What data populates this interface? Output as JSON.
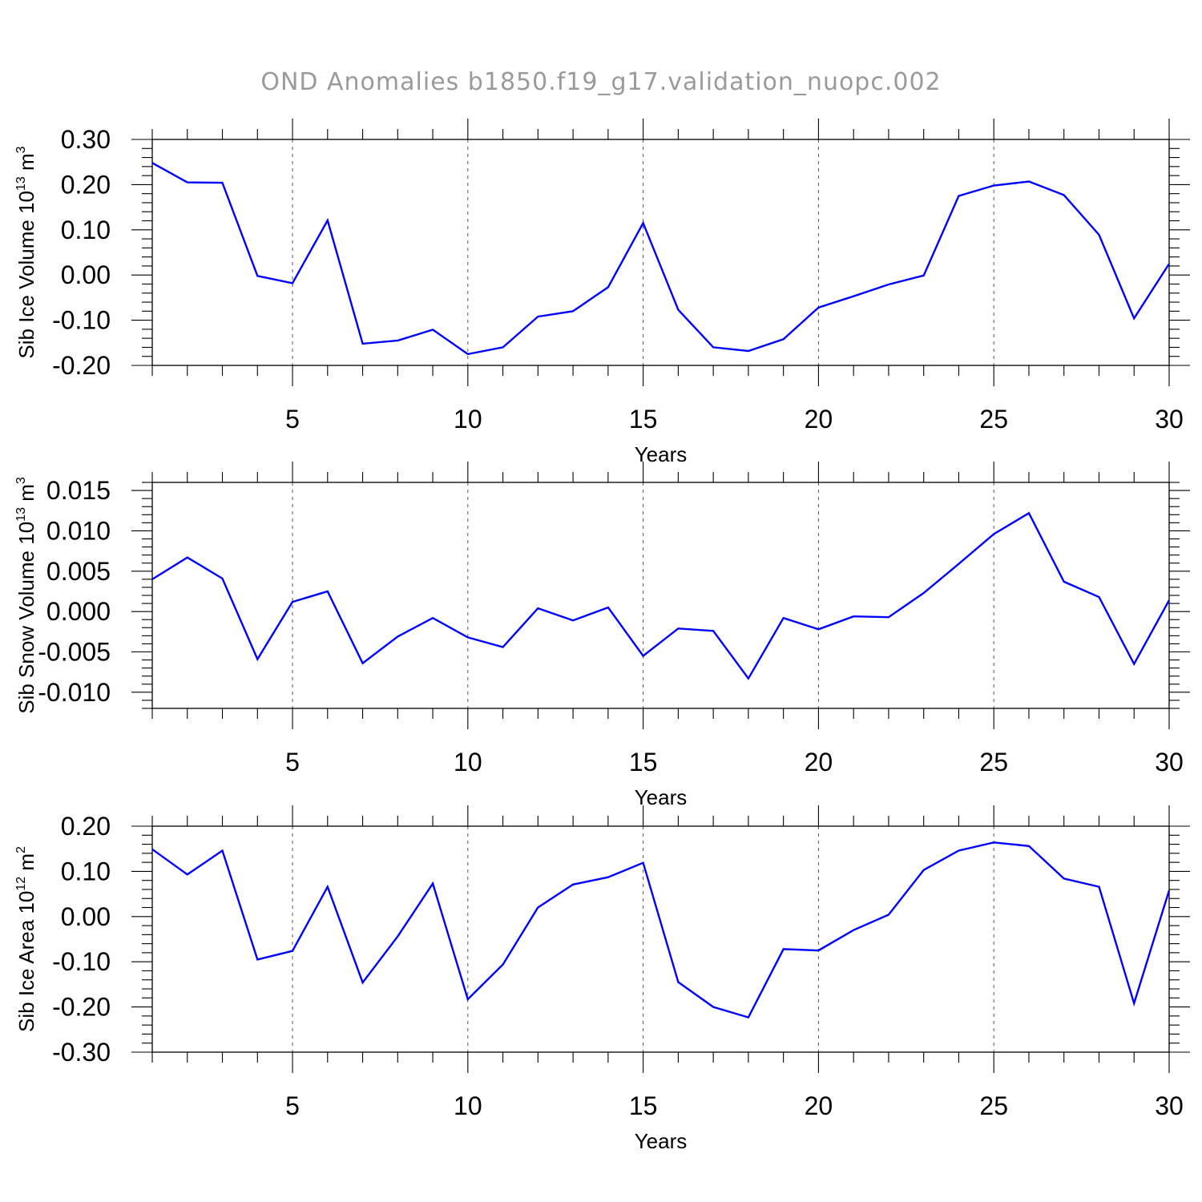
{
  "title": "OND Anomalies b1850.f19_g17.validation_nuopc.002",
  "chart_data": [
    {
      "type": "line",
      "xlabel": "Years",
      "ylabel": {
        "text": "Sib Ice Volume 10",
        "exponent": "13",
        "unit": " m",
        "unit_exponent": "3"
      },
      "xlim": [
        1,
        30
      ],
      "ylim": [
        -0.2,
        0.3
      ],
      "xticks": [
        "5",
        "10",
        "15",
        "20",
        "25",
        "30"
      ],
      "yticks": [
        "0.30",
        "0.20",
        "0.10",
        "0.00",
        "-0.10",
        "-0.20"
      ],
      "ytick_values": [
        0.3,
        0.2,
        0.1,
        0.0,
        -0.1,
        -0.2
      ],
      "ymajor_step": 0.1,
      "ysub": 5,
      "grid": "vertical dashed at major x ticks",
      "color": "#0000ff",
      "x": [
        1,
        2,
        3,
        4,
        5,
        6,
        7,
        8,
        9,
        10,
        11,
        12,
        13,
        14,
        15,
        16,
        17,
        18,
        19,
        20,
        21,
        22,
        23,
        24,
        25,
        26,
        27,
        28,
        29,
        30
      ],
      "y": [
        0.248,
        0.205,
        0.204,
        -0.002,
        -0.018,
        0.121,
        -0.152,
        -0.145,
        -0.121,
        -0.175,
        -0.16,
        -0.092,
        -0.08,
        -0.027,
        0.115,
        -0.077,
        -0.16,
        -0.168,
        -0.142,
        -0.072,
        -0.047,
        -0.021,
        -0.001,
        0.175,
        0.198,
        0.207,
        0.177,
        0.089,
        -0.096,
        0.025
      ]
    },
    {
      "type": "line",
      "xlabel": "Years",
      "ylabel": {
        "text": "Sib Snow Volume 10",
        "exponent": "13",
        "unit": " m",
        "unit_exponent": "3"
      },
      "xlim": [
        1,
        30
      ],
      "ylim": [
        -0.012,
        0.016
      ],
      "xticks": [
        "5",
        "10",
        "15",
        "20",
        "25",
        "30"
      ],
      "yticks": [
        "0.015",
        "0.010",
        "0.005",
        "0.000",
        "-0.005",
        "-0.010"
      ],
      "ytick_values": [
        0.015,
        0.01,
        0.005,
        0.0,
        -0.005,
        -0.01
      ],
      "ymajor_step": 0.005,
      "ysub": 5,
      "grid": "vertical dashed at major x ticks",
      "color": "#0000ff",
      "x": [
        1,
        2,
        3,
        4,
        5,
        6,
        7,
        8,
        9,
        10,
        11,
        12,
        13,
        14,
        15,
        16,
        17,
        18,
        19,
        20,
        21,
        22,
        23,
        24,
        25,
        26,
        27,
        28,
        29,
        30
      ],
      "y": [
        0.004,
        0.0067,
        0.0041,
        -0.0059,
        0.0012,
        0.0025,
        -0.0064,
        -0.0031,
        -0.0008,
        -0.0032,
        -0.0044,
        0.0004,
        -0.0011,
        0.0005,
        -0.0055,
        -0.0021,
        -0.0024,
        -0.0083,
        -0.0008,
        -0.0022,
        -0.0006,
        -0.0007,
        0.0023,
        0.0059,
        0.0096,
        0.0122,
        0.0037,
        0.0018,
        -0.0065,
        0.0014
      ]
    },
    {
      "type": "line",
      "xlabel": "Years",
      "ylabel": {
        "text": "Sib Ice Area 10",
        "exponent": "12",
        "unit": " m",
        "unit_exponent": "2"
      },
      "xlim": [
        1,
        30
      ],
      "ylim": [
        -0.3,
        0.2
      ],
      "xticks": [
        "5",
        "10",
        "15",
        "20",
        "25",
        "30"
      ],
      "yticks": [
        "0.20",
        "0.10",
        "0.00",
        "-0.10",
        "-0.20",
        "-0.30"
      ],
      "ytick_values": [
        0.2,
        0.1,
        0.0,
        -0.1,
        -0.2,
        -0.3
      ],
      "ymajor_step": 0.1,
      "ysub": 5,
      "grid": "vertical dashed at major x ticks",
      "color": "#0000ff",
      "x": [
        1,
        2,
        3,
        4,
        5,
        6,
        7,
        8,
        9,
        10,
        11,
        12,
        13,
        14,
        15,
        16,
        17,
        18,
        19,
        20,
        21,
        22,
        23,
        24,
        25,
        26,
        27,
        28,
        29,
        30
      ],
      "y": [
        0.149,
        0.093,
        0.146,
        -0.095,
        -0.076,
        0.066,
        -0.146,
        -0.044,
        0.073,
        -0.183,
        -0.106,
        0.02,
        0.071,
        0.087,
        0.119,
        -0.145,
        -0.2,
        -0.223,
        -0.072,
        -0.075,
        -0.03,
        0.004,
        0.103,
        0.146,
        0.164,
        0.156,
        0.084,
        0.066,
        -0.192,
        0.058
      ]
    }
  ]
}
